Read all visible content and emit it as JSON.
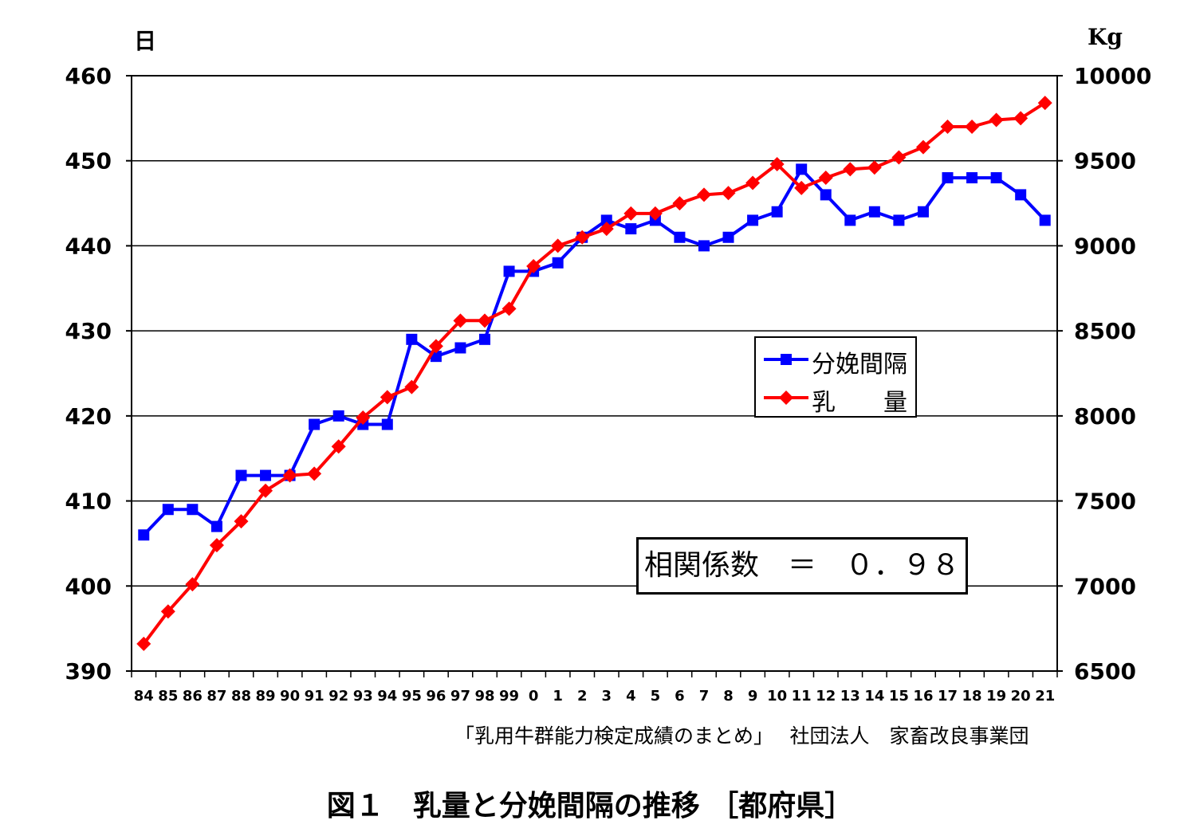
{
  "chart_data": {
    "type": "line",
    "categories": [
      "84",
      "85",
      "86",
      "87",
      "88",
      "89",
      "90",
      "91",
      "92",
      "93",
      "94",
      "95",
      "96",
      "97",
      "98",
      "99",
      "0",
      "1",
      "2",
      "3",
      "4",
      "5",
      "6",
      "7",
      "8",
      "9",
      "10",
      "11",
      "12",
      "13",
      "14",
      "15",
      "16",
      "17",
      "18",
      "19",
      "20",
      "21"
    ],
    "series": [
      {
        "name": "分娩間隔",
        "axis": "left",
        "color": "#0000ff",
        "marker": "square",
        "values": [
          406,
          409,
          409,
          407,
          413,
          413,
          413,
          419,
          420,
          419,
          419,
          429,
          427,
          428,
          429,
          437,
          437,
          438,
          441,
          443,
          442,
          443,
          441,
          440,
          441,
          443,
          444,
          449,
          446,
          443,
          444,
          443,
          444,
          448,
          448,
          448,
          446,
          443
        ]
      },
      {
        "name": "乳　　量",
        "axis": "right",
        "color": "#ff0000",
        "marker": "diamond",
        "values": [
          6660,
          6850,
          7010,
          7240,
          7380,
          7560,
          7650,
          7660,
          7820,
          7990,
          8110,
          8170,
          8410,
          8560,
          8560,
          8630,
          8880,
          9000,
          9050,
          9100,
          9190,
          9190,
          9250,
          9300,
          9310,
          9370,
          9480,
          9340,
          9400,
          9450,
          9460,
          9520,
          9580,
          9700,
          9700,
          9740,
          9750,
          9840
        ]
      }
    ],
    "y_left": {
      "label": "日",
      "min": 390,
      "max": 460,
      "ticks": [
        390,
        400,
        410,
        420,
        430,
        440,
        450,
        460
      ]
    },
    "y_right": {
      "label": "Kg",
      "min": 6500,
      "max": 10000,
      "ticks": [
        6500,
        7000,
        7500,
        8000,
        8500,
        9000,
        9500,
        10000
      ]
    },
    "grid": true,
    "legend_position": "center-right",
    "annotation": "相関係数　＝　０．９８",
    "source": "「乳用牛群能力検定成績のまとめ」　 社団法人　家畜改良事業団",
    "title": "図１　乳量と分娩間隔の推移 ［都府県］"
  }
}
